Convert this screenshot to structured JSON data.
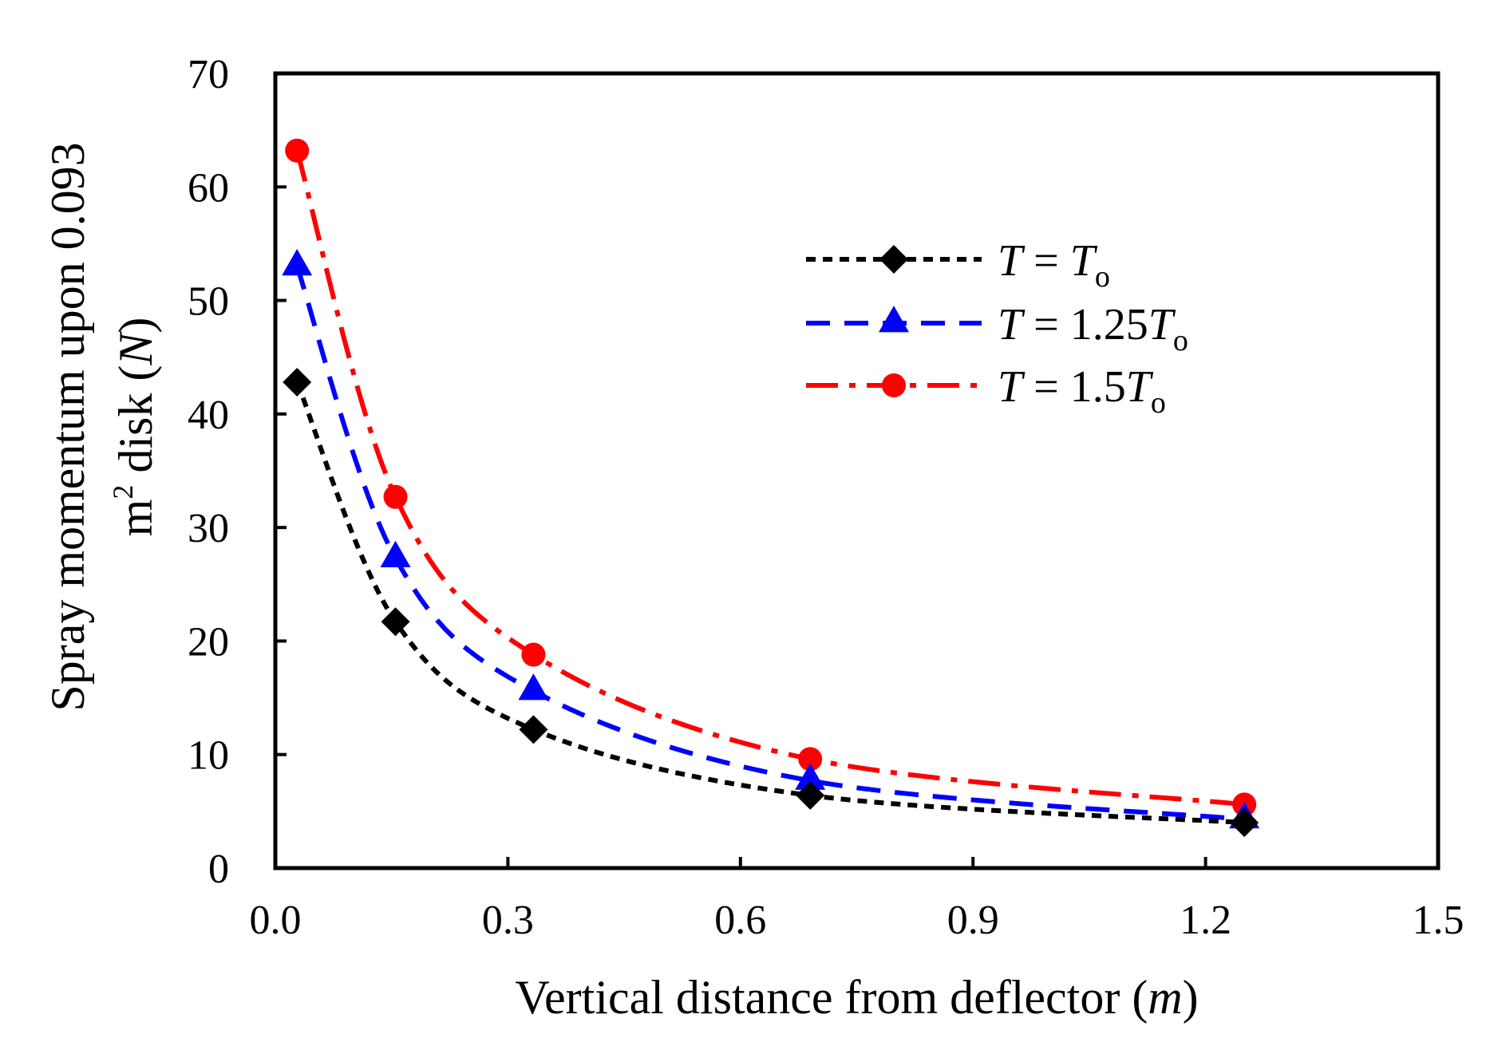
{
  "chart_data": {
    "type": "line",
    "title": "",
    "xlabel": {
      "main": "Vertical distance from deflector (",
      "unit": "m",
      "close": ")"
    },
    "ylabel": {
      "line1": "Spray momentum  upon 0.093",
      "line2_pre": "m",
      "line2_sup": "2",
      "line2_mid": " disk (",
      "line2_unit": "N",
      "line2_close": ")"
    },
    "xlim": [
      0,
      1.5
    ],
    "ylim": [
      0,
      70
    ],
    "x_ticks": [
      "0.0",
      "0.3",
      "0.6",
      "0.9",
      "1.2",
      "1.5"
    ],
    "y_ticks": [
      "0",
      "10",
      "20",
      "30",
      "40",
      "50",
      "60",
      "70"
    ],
    "grid": false,
    "legend_position": "top-right",
    "series": [
      {
        "name": {
          "var": "T",
          "eq": " = ",
          "coef": "",
          "base": "T",
          "sub": "o"
        },
        "color": "#000000",
        "marker": "diamond",
        "line_style": "dotted",
        "x": [
          0.028,
          0.155,
          0.333,
          0.69,
          1.25
        ],
        "y": [
          42.8,
          21.7,
          12.2,
          6.4,
          4.0
        ]
      },
      {
        "name": {
          "var": "T",
          "eq": " = ",
          "coef": "1.25",
          "base": "T",
          "sub": "o"
        },
        "color": "#0000ff",
        "marker": "triangle",
        "line_style": "dashed",
        "x": [
          0.028,
          0.155,
          0.333,
          0.69,
          1.25
        ],
        "y": [
          53.0,
          27.3,
          15.6,
          7.7,
          4.3
        ]
      },
      {
        "name": {
          "var": "T",
          "eq": " = ",
          "coef": "1.5",
          "base": "T",
          "sub": "o"
        },
        "color": "#ff0000",
        "marker": "circle",
        "line_style": "dash-dot",
        "x": [
          0.028,
          0.155,
          0.333,
          0.69,
          1.25
        ],
        "y": [
          63.2,
          32.7,
          18.8,
          9.6,
          5.6
        ]
      }
    ]
  }
}
